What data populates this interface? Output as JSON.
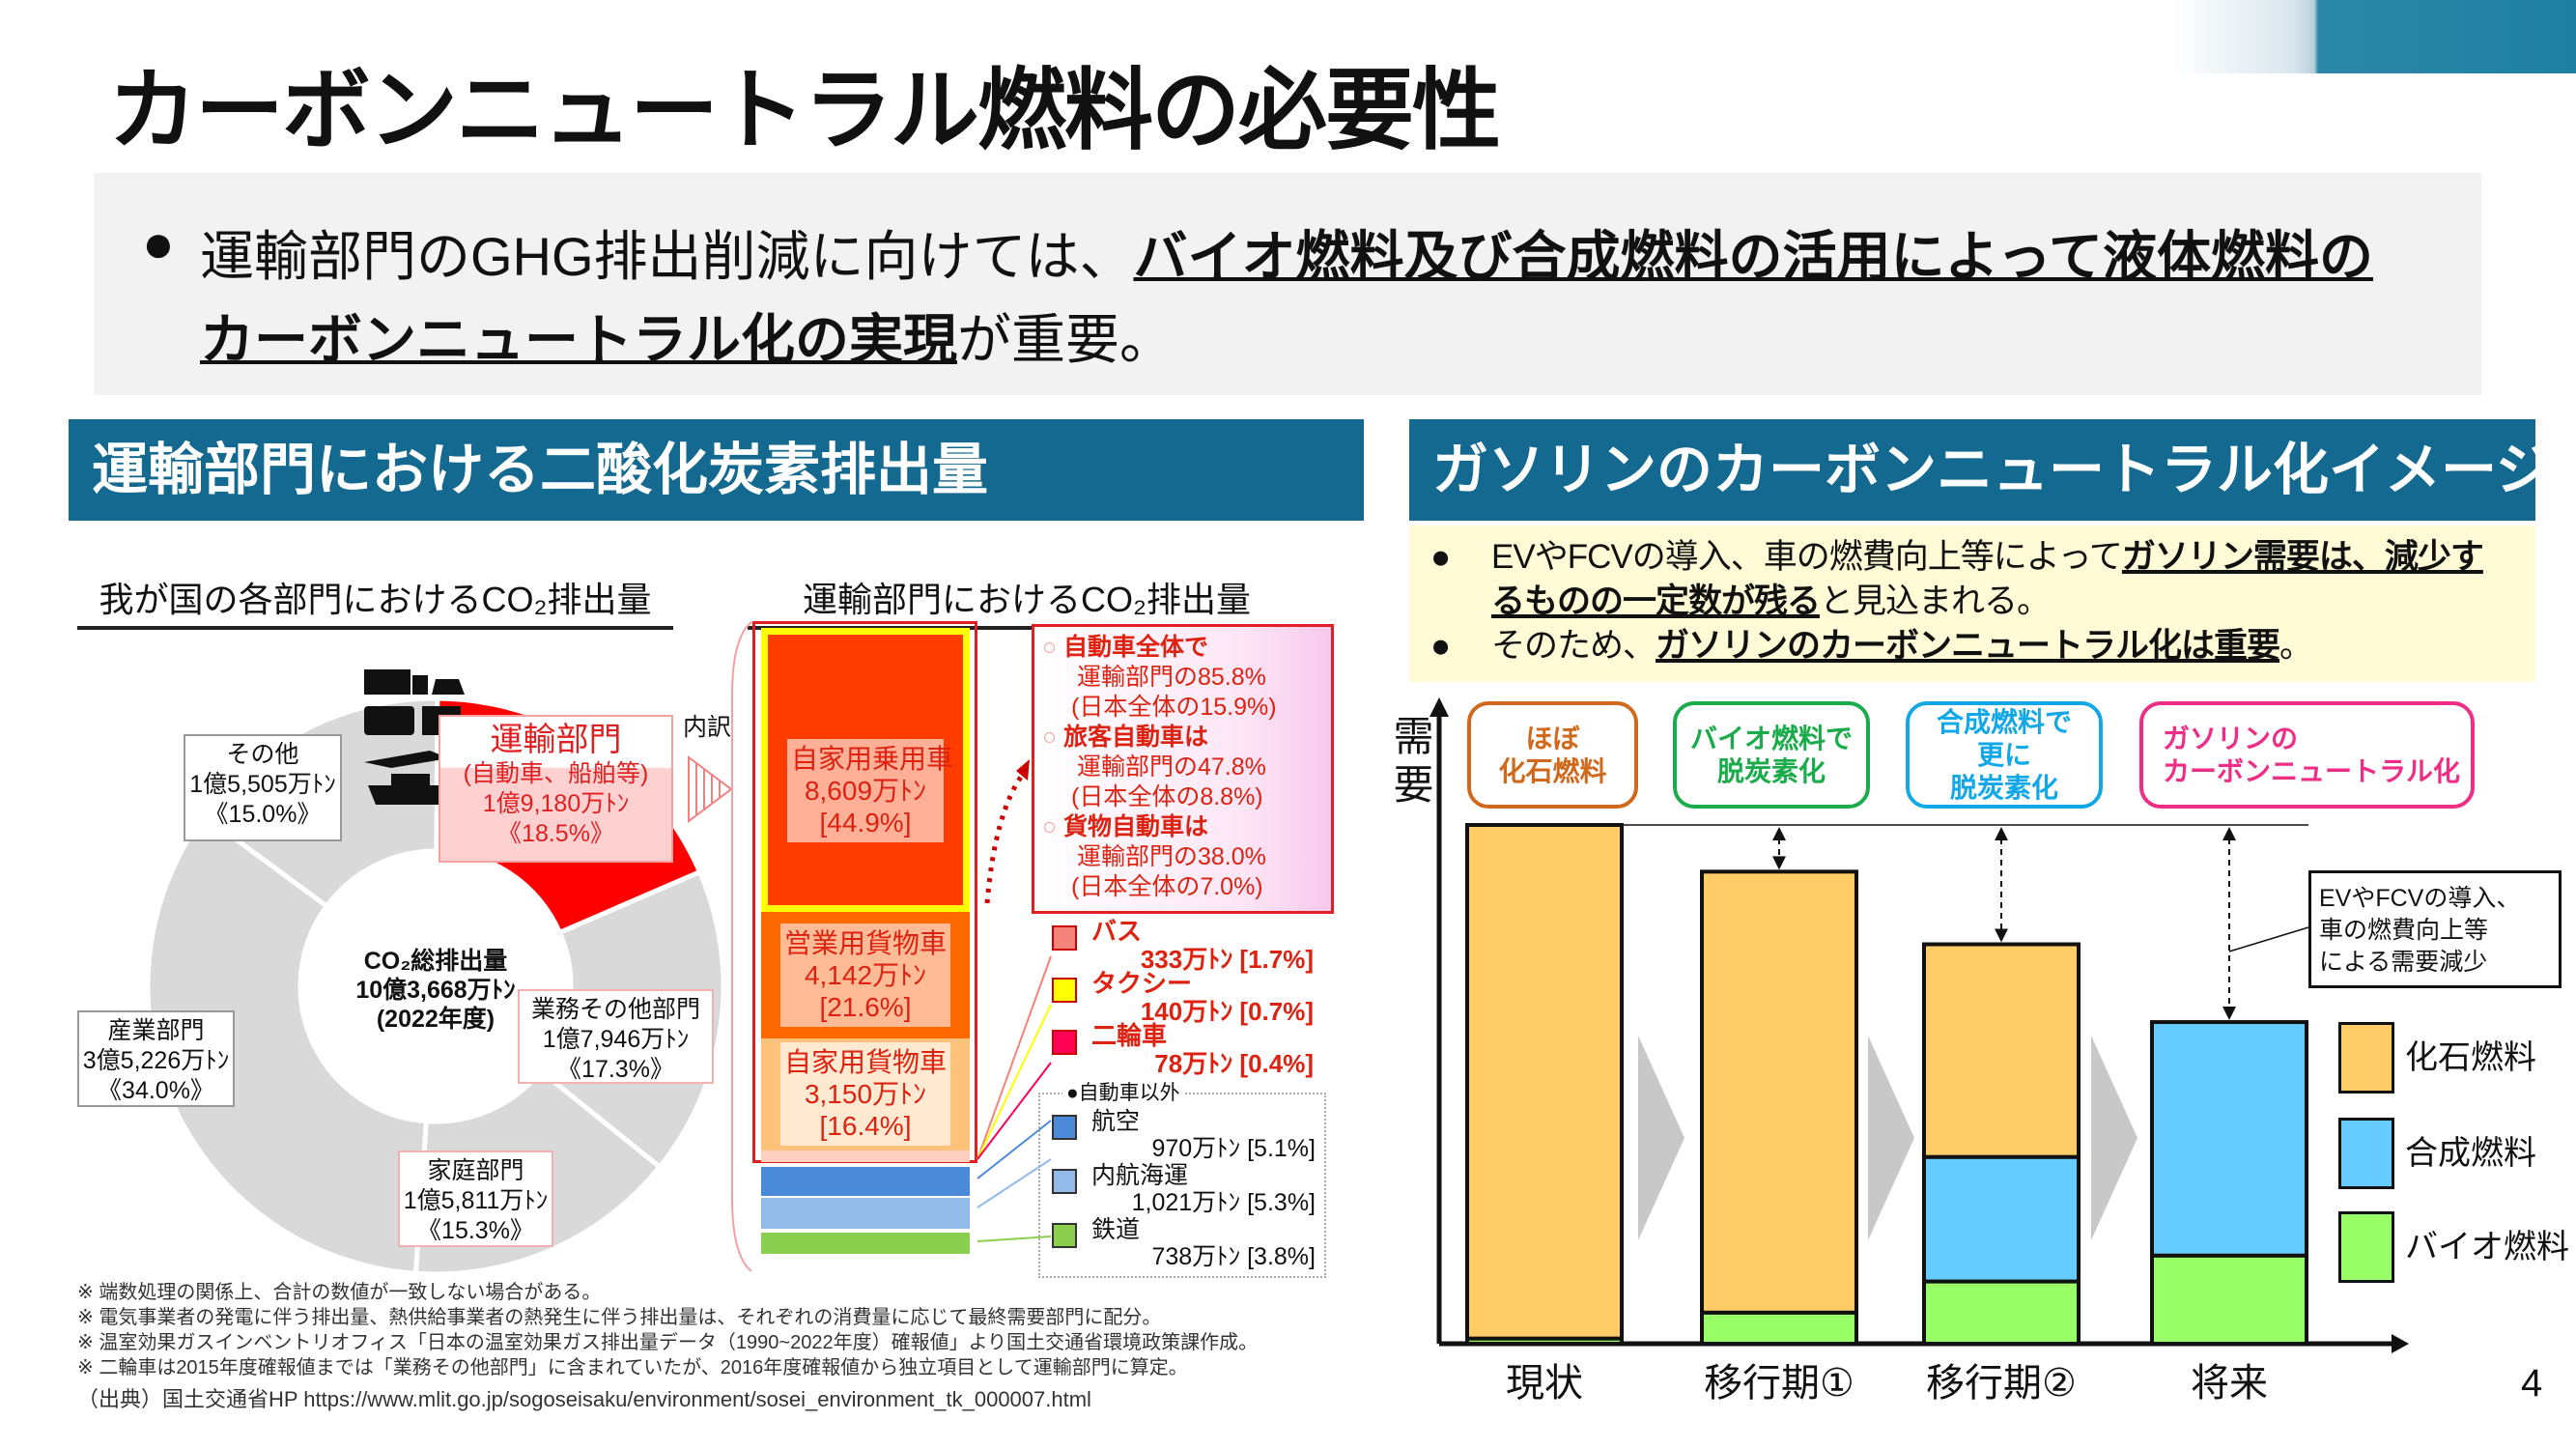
{
  "title": "カーボンニュートラル燃料の必要性",
  "summary": {
    "line1_plain": "運輸部門のGHG排出削減に向けては、",
    "line1_bold": "バイオ燃料及び合成燃料の活用によって液体燃料の",
    "line2_bold": "カーボンニュートラル化の実現",
    "line2_plain": "が重要。"
  },
  "left_panel": {
    "header": "運輸部門における二酸化炭素排出量",
    "pie_title": "我が国の各部門におけるCO₂排出量",
    "bar_title": "運輸部門におけるCO₂排出量",
    "pie_center": [
      "CO₂総排出量",
      "10億3,668万ﾄﾝ",
      "(2022年度)"
    ],
    "uchiwake": "内訳",
    "sectors": [
      {
        "name": "運輸部門",
        "sub": "(自動車、船舶等)",
        "value": "1億9,180万ﾄﾝ",
        "pct": "《18.5%》",
        "share": 18.5,
        "color": "#ff0000"
      },
      {
        "name": "業務その他部門",
        "value": "1億7,946万ﾄﾝ",
        "pct": "《17.3%》",
        "share": 17.3,
        "color": "#d9d9d9"
      },
      {
        "name": "家庭部門",
        "value": "1億5,811万ﾄﾝ",
        "pct": "《15.3%》",
        "share": 15.3,
        "color": "#d9d9d9"
      },
      {
        "name": "産業部門",
        "value": "3億5,226万ﾄﾝ",
        "pct": "《34.0%》",
        "share": 34.0,
        "color": "#d9d9d9"
      },
      {
        "name": "その他",
        "value": "1億5,505万ﾄﾝ",
        "pct": "《15.0%》",
        "share": 15.0,
        "color": "#d9d9d9"
      }
    ],
    "breakdown": [
      {
        "name": "自家用乗用車",
        "value": "8,609万ﾄﾝ",
        "pct": "[44.9%]",
        "color": "#ff3c00"
      },
      {
        "name": "営業用貨物車",
        "value": "4,142万ﾄﾝ",
        "pct": "[21.6%]",
        "color": "#ff6a00"
      },
      {
        "name": "自家用貨物車",
        "value": "3,150万ﾄﾝ",
        "pct": "[16.4%]",
        "color": "#ffc27a"
      }
    ],
    "info_box": [
      {
        "bold": "自動車全体で",
        "l2": "運輸部門の85.8%",
        "l3": "(日本全体の15.9%)"
      },
      {
        "bold": "旅客自動車は",
        "l2": "運輸部門の47.8%",
        "l3": "(日本全体の8.8%)"
      },
      {
        "bold": "貨物自動車は",
        "l2": "運輸部門の38.0%",
        "l3": "(日本全体の7.0%)"
      }
    ],
    "small_vehicles": [
      {
        "name": "バス",
        "value": "333万ﾄﾝ [1.7%]",
        "color": "#f4847a"
      },
      {
        "name": "タクシー",
        "value": "140万ﾄﾝ [0.7%]",
        "color": "#ffff00"
      },
      {
        "name": "二輪車",
        "value": "78万ﾄﾝ [0.4%]",
        "color": "#ff0055"
      }
    ],
    "non_auto_title": "●自動車以外",
    "non_auto": [
      {
        "name": "航空",
        "value": "970万ﾄﾝ [5.1%]",
        "color": "#4a8ad8"
      },
      {
        "name": "内航海運",
        "value": "1,021万ﾄﾝ [5.3%]",
        "color": "#93bbea"
      },
      {
        "name": "鉄道",
        "value": "738万ﾄﾝ [3.8%]",
        "color": "#8ccf4f"
      }
    ],
    "notes": [
      "※ 端数処理の関係上、合計の数値が一致しない場合がある。",
      "※ 電気事業者の発電に伴う排出量、熱供給事業者の熱発生に伴う排出量は、それぞれの消費量に応じて最終需要部門に配分。",
      "※ 温室効果ガスインベントリオフィス「日本の温室効果ガス排出量データ（1990~2022年度）確報値」より国土交通省環境政策課作成。",
      "※ 二輪車は2015年度確報値までは「業務その他部門」に含まれていたが、2016年度確報値から独立項目として運輸部門に算定。"
    ],
    "source": "（出典）国土交通省HP https://www.mlit.go.jp/sogoseisaku/environment/sosei_environment_tk_000007.html"
  },
  "right_panel": {
    "header": "ガソリンのカーボンニュートラル化イメージ",
    "bullet1_plain": "EVやFCVの導入、車の燃費向上等によって",
    "bullet1_bold_a": "ガソリン需要は、減少す",
    "bullet1_bold_b": "るものの一定数が残る",
    "bullet1_tail": "と見込まれる。",
    "bullet2_plain": "そのため、",
    "bullet2_bold": "ガソリンのカーボンニュートラル化は重要",
    "bullet2_tail": "。",
    "y_label": "需要",
    "stages": [
      {
        "text": "ほぼ\n化石燃料",
        "color": "#d0691c"
      },
      {
        "text": "バイオ燃料で\n脱炭素化",
        "color": "#1aab4a"
      },
      {
        "text": "合成燃料で\n更に\n脱炭素化",
        "color": "#12a8e8"
      },
      {
        "text": "ガソリンの\nカーボンニュートラル化",
        "color": "#ee2d86"
      }
    ],
    "annotation": "EVやFCVの導入、\n車の燃費向上等\nによる需要減少"
  },
  "chart_data": {
    "type": "bar",
    "stacked": true,
    "categories": [
      "現状",
      "移行期①",
      "移行期②",
      "将来"
    ],
    "ylabel": "需要",
    "series": [
      {
        "name": "バイオ燃料",
        "color": "#99ff66",
        "values": [
          1,
          6,
          12,
          17
        ]
      },
      {
        "name": "合成燃料",
        "color": "#66ccff",
        "values": [
          0,
          0,
          24,
          45
        ]
      },
      {
        "name": "化石燃料",
        "color": "#ffcc66",
        "values": [
          99,
          85,
          41,
          0
        ]
      }
    ],
    "legend_order": [
      "化石燃料",
      "合成燃料",
      "バイオ燃料"
    ],
    "legend": "right",
    "ylim": [
      0,
      100
    ],
    "grid": false
  },
  "page_number": "4"
}
